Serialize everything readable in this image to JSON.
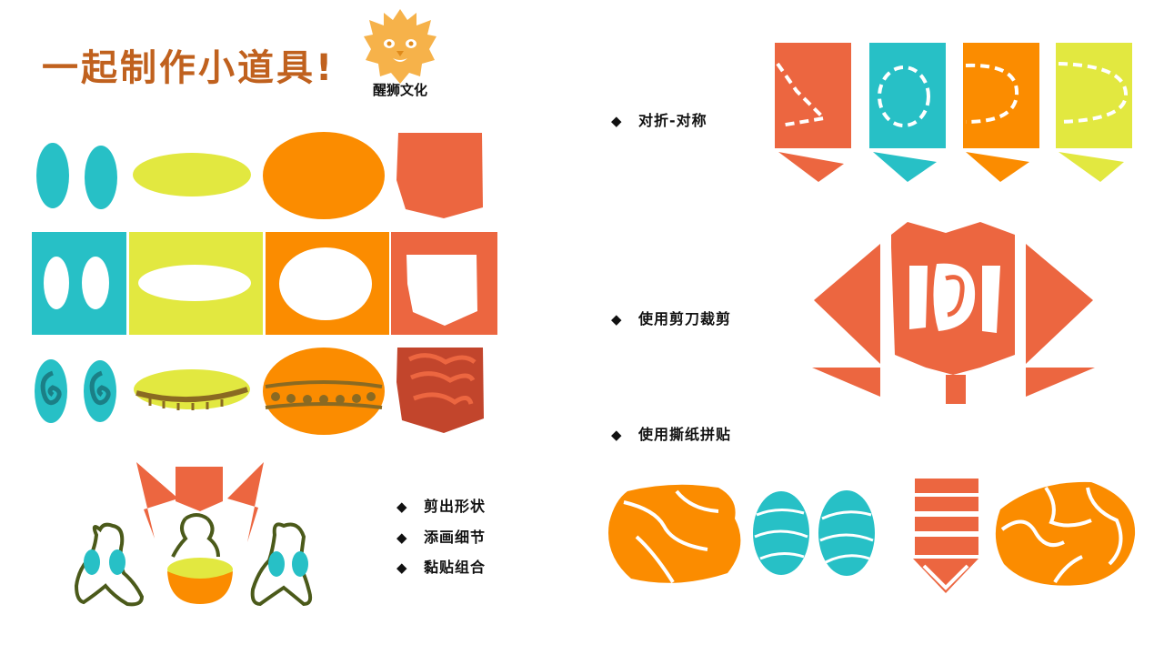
{
  "title": "一起制作小道具!",
  "logo": {
    "text": "醒狮文化",
    "icon": "lion-head-icon",
    "color": "#f6b24a"
  },
  "left_steps": [
    {
      "label": "剪出形状"
    },
    {
      "label": "添画细节"
    },
    {
      "label": "黏贴组合"
    }
  ],
  "right_methods": [
    {
      "label": "对折-对称"
    },
    {
      "label": "使用剪刀裁剪"
    },
    {
      "label": "使用撕纸拼贴"
    }
  ],
  "bullet_symbol": "◆",
  "colors": {
    "teal": "#27c0c6",
    "yellow_green": "#e2e840",
    "orange": "#fb8c00",
    "red_orange": "#ec6640",
    "dark_red": "#c2452c",
    "olive": "#8a6a22",
    "title": "#c0611e"
  }
}
